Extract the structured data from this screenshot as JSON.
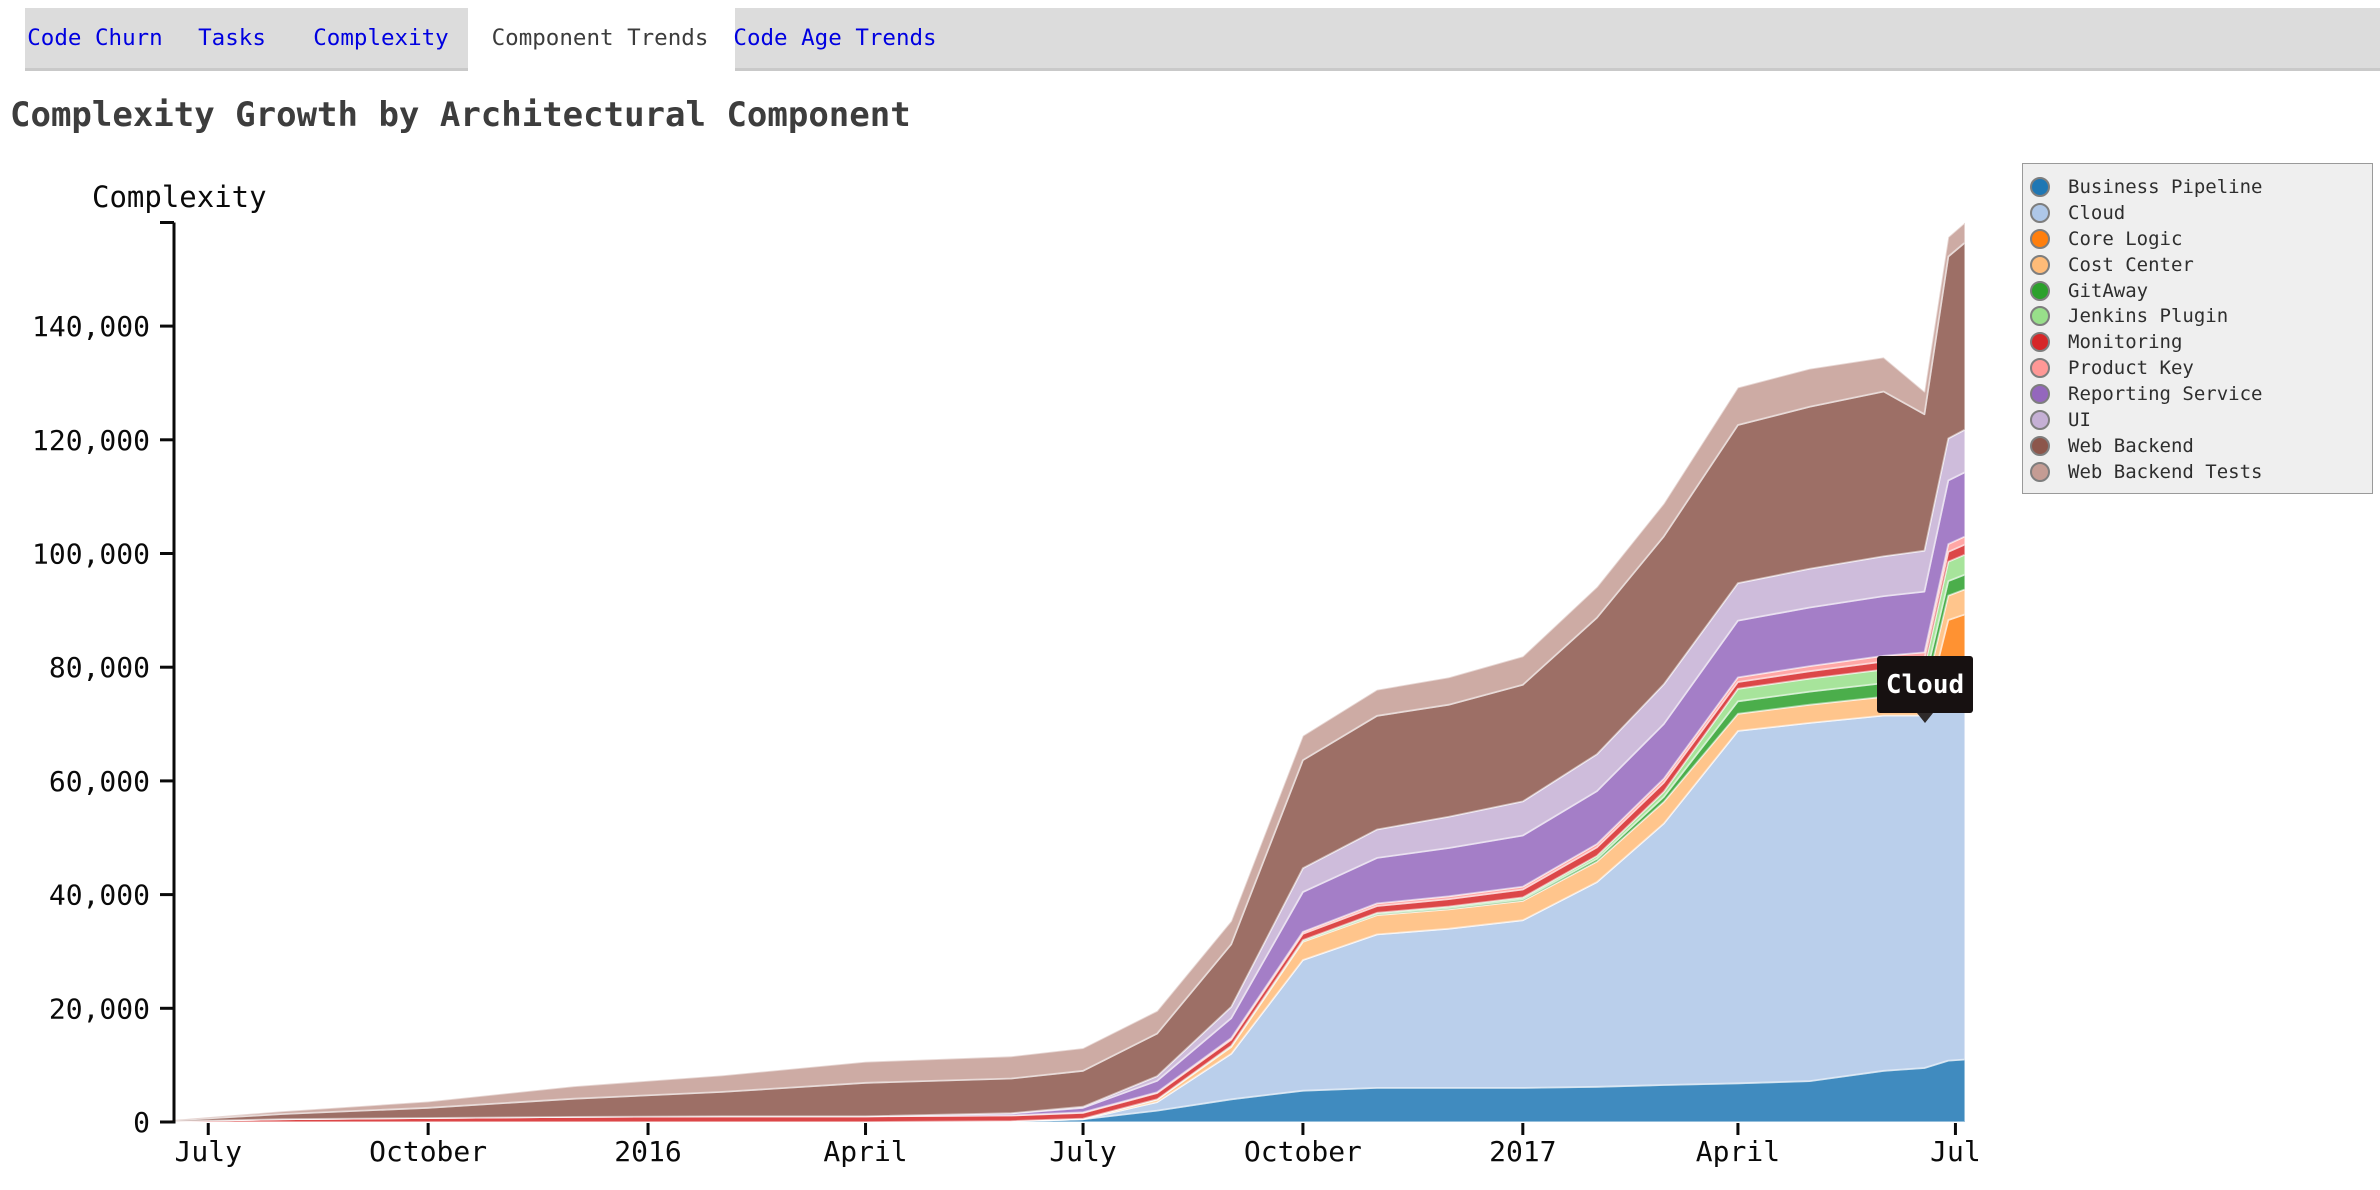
{
  "tab_bar": {
    "tabs": [
      {
        "id": "code-churn",
        "label": "Code Churn",
        "active": false
      },
      {
        "id": "tasks",
        "label": "Tasks",
        "active": false
      },
      {
        "id": "complexity",
        "label": "Complexity",
        "active": false
      },
      {
        "id": "component-trends",
        "label": "Component Trends",
        "active": true
      },
      {
        "id": "code-age-trends",
        "label": "Code Age Trends",
        "active": false
      }
    ]
  },
  "page_title": "Complexity Growth by Architectural Component",
  "y_axis": {
    "title": "Complexity",
    "tick_labels": [
      "0",
      "20,000",
      "40,000",
      "60,000",
      "80,000",
      "100,000",
      "120,000",
      "140,000"
    ]
  },
  "x_axis": {
    "ticks": [
      {
        "label": "July",
        "date": "2015-07-01"
      },
      {
        "label": "October",
        "date": "2015-10-01"
      },
      {
        "label": "2016",
        "date": "2016-01-01"
      },
      {
        "label": "April",
        "date": "2016-04-01"
      },
      {
        "label": "July",
        "date": "2016-07-01"
      },
      {
        "label": "October",
        "date": "2016-10-01"
      },
      {
        "label": "2017",
        "date": "2017-01-01"
      },
      {
        "label": "April",
        "date": "2017-04-01"
      },
      {
        "label": "Jul",
        "date": "2017-07-01"
      }
    ]
  },
  "tooltip": {
    "label": "Cloud"
  },
  "chart_data": {
    "type": "area",
    "stacked": true,
    "title": "Complexity Growth by Architectural Component",
    "xlabel": "",
    "ylabel": "Complexity",
    "ylim": [
      0,
      158200
    ],
    "grid": false,
    "legend_position": "right",
    "x_domain": [
      "2015-06-15",
      "2017-07-05"
    ],
    "x": [
      "2015-06-15",
      "2015-08-01",
      "2015-10-01",
      "2015-12-01",
      "2016-02-01",
      "2016-04-01",
      "2016-06-01",
      "2016-07-01",
      "2016-08-01",
      "2016-09-01",
      "2016-10-01",
      "2016-11-01",
      "2016-12-01",
      "2017-01-01",
      "2017-02-01",
      "2017-03-01",
      "2017-04-01",
      "2017-05-01",
      "2017-06-01",
      "2017-06-18",
      "2017-06-28",
      "2017-07-05"
    ],
    "series": [
      {
        "name": "Business Pipeline",
        "color": "#1f77b4",
        "values": [
          0,
          0,
          0,
          0,
          0,
          0,
          100,
          500,
          2000,
          4000,
          5500,
          6000,
          6000,
          6000,
          6200,
          6500,
          6800,
          7200,
          9000,
          9500,
          10800,
          11000
        ]
      },
      {
        "name": "Cloud",
        "color": "#aec7e8",
        "values": [
          0,
          0,
          0,
          0,
          0,
          0,
          0,
          0,
          1500,
          8000,
          23000,
          27000,
          28000,
          29500,
          36000,
          46000,
          62000,
          63000,
          62500,
          62000,
          63000,
          63300
        ]
      },
      {
        "name": "Core Logic",
        "color": "#ff7f0e",
        "values": [
          0,
          0,
          0,
          0,
          0,
          0,
          0,
          0,
          0,
          0,
          0,
          0,
          0,
          0,
          0,
          0,
          0,
          0,
          0,
          0,
          14500,
          15000
        ]
      },
      {
        "name": "Cost Center",
        "color": "#ffbb78",
        "values": [
          0,
          0,
          0,
          0,
          0,
          0,
          50,
          100,
          400,
          1200,
          3200,
          3400,
          3400,
          3400,
          3600,
          3800,
          3000,
          3200,
          3300,
          3400,
          4300,
          4400
        ]
      },
      {
        "name": "GitAway",
        "color": "#2ca02c",
        "values": [
          0,
          0,
          0,
          0,
          0,
          0,
          0,
          0,
          50,
          100,
          150,
          200,
          250,
          300,
          500,
          900,
          2200,
          2300,
          2400,
          2500,
          2550,
          2600
        ]
      },
      {
        "name": "Jenkins Plugin",
        "color": "#98df8a",
        "values": [
          0,
          0,
          0,
          0,
          0,
          0,
          0,
          0,
          50,
          100,
          150,
          200,
          250,
          300,
          500,
          900,
          2200,
          2300,
          2400,
          2600,
          3400,
          3500
        ]
      },
      {
        "name": "Monitoring",
        "color": "#d62728",
        "values": [
          100,
          500,
          700,
          900,
          1000,
          1000,
          1000,
          1000,
          1100,
          1100,
          1100,
          1200,
          1300,
          1400,
          1500,
          1600,
          1200,
          1300,
          1400,
          1500,
          1750,
          1800
        ]
      },
      {
        "name": "Product Key",
        "color": "#ff9896",
        "values": [
          0,
          0,
          0,
          0,
          0,
          0,
          50,
          100,
          150,
          250,
          350,
          450,
          500,
          500,
          600,
          700,
          800,
          900,
          1000,
          1100,
          1350,
          1400
        ]
      },
      {
        "name": "Reporting Service",
        "color": "#9467bd",
        "values": [
          0,
          0,
          0,
          0,
          0,
          0,
          300,
          800,
          2000,
          3500,
          7000,
          8000,
          8500,
          9000,
          9300,
          9600,
          10000,
          10300,
          10500,
          10700,
          11200,
          11300
        ]
      },
      {
        "name": "UI",
        "color": "#c5b0d5",
        "values": [
          0,
          0,
          0,
          0,
          0,
          0,
          50,
          200,
          800,
          2000,
          4200,
          5000,
          5500,
          6000,
          6500,
          7000,
          6600,
          6800,
          7000,
          7200,
          7400,
          7500
        ]
      },
      {
        "name": "Web Backend",
        "color": "#8c564b",
        "values": [
          150,
          900,
          1800,
          3200,
          4300,
          5900,
          6100,
          6300,
          7500,
          11000,
          19000,
          20000,
          19700,
          20500,
          24000,
          26000,
          27800,
          28500,
          29000,
          24000,
          32000,
          32900
        ]
      },
      {
        "name": "Web Backend Tests",
        "color": "#c49c94",
        "values": [
          50,
          500,
          1100,
          2200,
          2900,
          3700,
          3900,
          4000,
          4000,
          4100,
          4300,
          4600,
          4800,
          5000,
          5400,
          5800,
          6600,
          6700,
          6000,
          4000,
          3400,
          3500
        ]
      }
    ]
  }
}
